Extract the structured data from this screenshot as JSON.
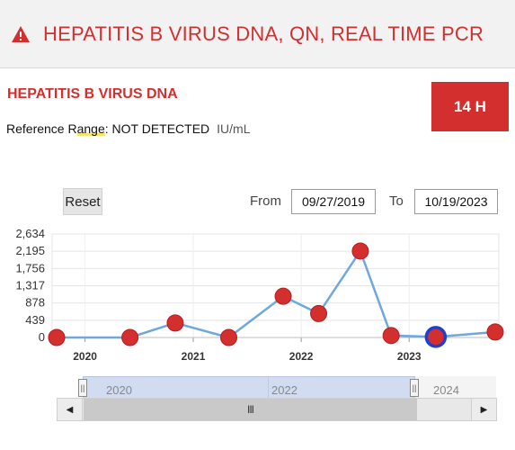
{
  "header": {
    "title": "HEPATITIS B VIRUS DNA, QN, REAL TIME PCR",
    "icon": "warning-icon",
    "accent": "#d32f2f"
  },
  "result": {
    "test_name": "HEPATITIS B VIRUS DNA",
    "value": "14 H",
    "ref_prefix": "Reference Range",
    "ref_value": ": NOT DETECTED",
    "unit": "IU/mL"
  },
  "controls": {
    "reset_label": "Reset",
    "from_label": "From",
    "from_value": "09/27/2019",
    "to_label": "To",
    "to_value": "10/19/2023"
  },
  "navigator": {
    "labels": [
      "2020",
      "2022",
      "2024"
    ],
    "thumb_grip": "III"
  },
  "chart_data": {
    "type": "line",
    "yticks": [
      "2,634",
      "2,195",
      "1,756",
      "1,317",
      "878",
      "439",
      "0"
    ],
    "xticks": [
      "2020",
      "2021",
      "2022",
      "2023"
    ],
    "ylim": [
      0,
      2634
    ],
    "series": [
      {
        "line_color": "#6fa8dc",
        "marker_color": "#d32f2f",
        "points": [
          {
            "x": "2019-09-27",
            "y": 0
          },
          {
            "x": "2020-06-01",
            "y": 0
          },
          {
            "x": "2020-11-01",
            "y": 370
          },
          {
            "x": "2021-05-01",
            "y": 0
          },
          {
            "x": "2021-11-01",
            "y": 1050
          },
          {
            "x": "2022-03-01",
            "y": 610
          },
          {
            "x": "2022-07-20",
            "y": 2200
          },
          {
            "x": "2022-11-01",
            "y": 50
          },
          {
            "x": "2023-04-01",
            "y": 14,
            "selected": true
          },
          {
            "x": "2023-10-19",
            "y": 140
          }
        ]
      }
    ],
    "grid": true
  }
}
